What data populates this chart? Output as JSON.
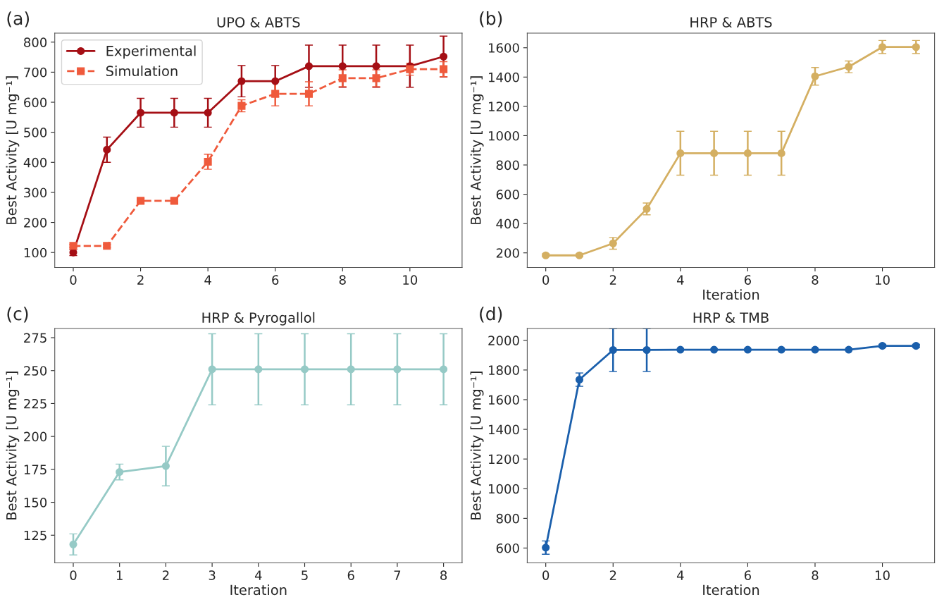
{
  "chart_data": [
    {
      "type": "line",
      "title": "UPO & ABTS",
      "ylabel": "Best Activity [U mg⁻¹]",
      "annotations": [
        "(a)"
      ],
      "x": [
        0,
        1,
        2,
        3,
        4,
        5,
        6,
        7,
        8,
        9,
        10,
        11
      ],
      "xlim": [
        -0.55,
        11.55
      ],
      "xticks": [
        0,
        2,
        4,
        6,
        8,
        10
      ],
      "ylim": [
        50,
        830
      ],
      "yticks": [
        100,
        200,
        300,
        400,
        500,
        600,
        700,
        800
      ],
      "grid": false,
      "legend": "top left",
      "series": [
        {
          "name": "Experimental",
          "color": "#a50f15",
          "marker": "circle",
          "line_style": "solid",
          "values": [
            100,
            442,
            565,
            565,
            565,
            670,
            670,
            720,
            720,
            720,
            720,
            752
          ],
          "errors": [
            10,
            42,
            48,
            48,
            48,
            52,
            52,
            70,
            70,
            70,
            70,
            68
          ]
        },
        {
          "name": "Simulation",
          "color": "#ef5a3c",
          "marker": "square",
          "line_style": "dashed",
          "values": [
            122,
            122,
            272,
            272,
            402,
            588,
            628,
            628,
            680,
            680,
            710,
            710
          ],
          "errors": [
            5,
            5,
            8,
            8,
            25,
            20,
            40,
            40,
            28,
            28,
            20,
            25
          ]
        }
      ]
    },
    {
      "type": "line",
      "title": "HRP & ABTS",
      "xlabel": "Iteration",
      "ylabel": "Best Activity [U mg⁻¹]",
      "annotations": [
        "(b)"
      ],
      "x": [
        0,
        1,
        2,
        3,
        4,
        5,
        6,
        7,
        8,
        9,
        10,
        11
      ],
      "xlim": [
        -0.55,
        11.55
      ],
      "xticks": [
        0,
        2,
        4,
        6,
        8,
        10
      ],
      "ylim": [
        100,
        1700
      ],
      "yticks": [
        200,
        400,
        600,
        800,
        1000,
        1200,
        1400,
        1600
      ],
      "grid": false,
      "marker": "circle",
      "line_style": "solid",
      "series": [
        {
          "color": "#d4af62",
          "values": [
            183,
            183,
            265,
            500,
            880,
            880,
            880,
            880,
            1405,
            1470,
            1605,
            1605
          ],
          "errors": [
            10,
            10,
            40,
            40,
            150,
            150,
            150,
            150,
            60,
            40,
            45,
            45
          ]
        }
      ]
    },
    {
      "type": "line",
      "title": "HRP & Pyrogallol",
      "xlabel": "Iteration",
      "ylabel": "Best Activity [U mg⁻¹]",
      "annotations": [
        "(c)"
      ],
      "x": [
        0,
        1,
        2,
        3,
        4,
        5,
        6,
        7,
        8
      ],
      "xlim": [
        -0.4,
        8.4
      ],
      "xticks": [
        0,
        1,
        2,
        3,
        4,
        5,
        6,
        7,
        8
      ],
      "ylim": [
        104,
        282
      ],
      "yticks": [
        125,
        150,
        175,
        200,
        225,
        250,
        275
      ],
      "grid": false,
      "marker": "circle",
      "line_style": "solid",
      "series": [
        {
          "color": "#96cac6",
          "values": [
            118,
            173,
            177.5,
            251,
            251,
            251,
            251,
            251,
            251
          ],
          "errors": [
            8,
            6,
            15,
            27,
            27,
            27,
            27,
            27,
            27
          ]
        }
      ]
    },
    {
      "type": "line",
      "title": "HRP & TMB",
      "xlabel": "Iteration",
      "ylabel": "Best Activity [U mg⁻¹]",
      "annotations": [
        "(d)"
      ],
      "x": [
        0,
        1,
        2,
        3,
        4,
        5,
        6,
        7,
        8,
        9,
        10,
        11
      ],
      "xlim": [
        -0.55,
        11.55
      ],
      "xticks": [
        0,
        2,
        4,
        6,
        8,
        10
      ],
      "ylim": [
        500,
        2080
      ],
      "yticks": [
        600,
        800,
        1000,
        1200,
        1400,
        1600,
        1800,
        2000
      ],
      "grid": false,
      "marker": "circle",
      "line_style": "solid",
      "series": [
        {
          "color": "#1a5fac",
          "values": [
            603,
            1735,
            1935,
            1935,
            1937,
            1937,
            1937,
            1937,
            1937,
            1937,
            1963,
            1963
          ],
          "errors": [
            45,
            45,
            145,
            145,
            null,
            null,
            null,
            null,
            null,
            null,
            10,
            10
          ]
        }
      ]
    }
  ]
}
